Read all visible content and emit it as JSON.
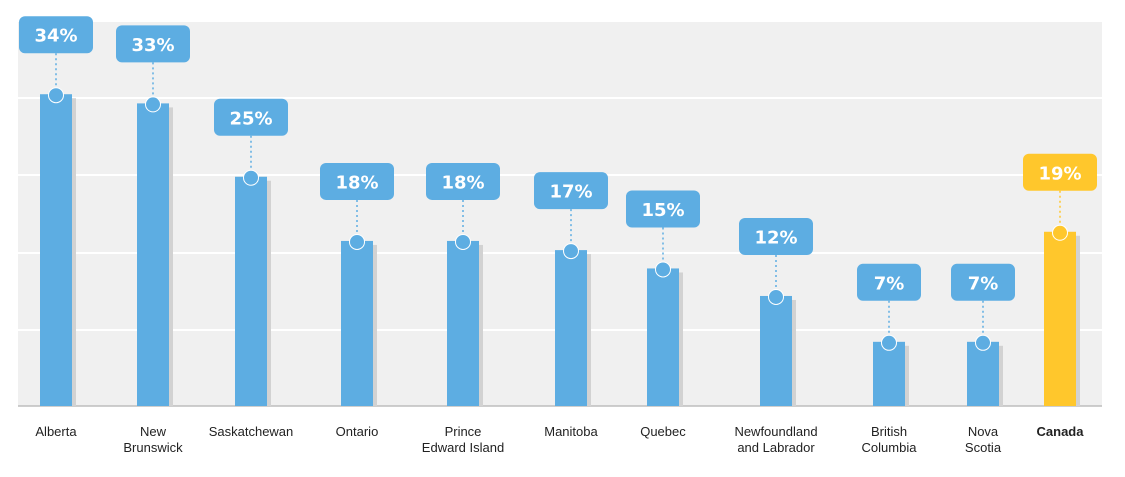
{
  "chart_data": {
    "type": "bar",
    "title": "",
    "xlabel": "",
    "ylabel": "",
    "ylim": [
      0,
      40
    ],
    "grid": true,
    "categories": [
      [
        "Alberta"
      ],
      [
        "New",
        "Brunswick"
      ],
      [
        "Saskatchewan"
      ],
      [
        "Ontario"
      ],
      [
        "Prince",
        "Edward Island"
      ],
      [
        "Manitoba"
      ],
      [
        "Quebec"
      ],
      [
        "Newfoundland",
        "and Labrador"
      ],
      [
        "British",
        "Columbia"
      ],
      [
        "Nova",
        "Scotia"
      ],
      [
        "Canada"
      ]
    ],
    "values": [
      34,
      33,
      25,
      18,
      18,
      17,
      15,
      12,
      7,
      7,
      19
    ],
    "value_labels": [
      "34%",
      "33%",
      "25%",
      "18%",
      "18%",
      "17%",
      "15%",
      "12%",
      "7%",
      "7%",
      "19%"
    ],
    "highlight_index": 10
  },
  "colors": {
    "bar": "#5dade2",
    "bar_shadow": "#d2d2d2",
    "highlight": "#ffc72c",
    "plot_bg": "#f0f0f0",
    "grid": "#ffffff",
    "baseline": "#bdbdbd",
    "connector": "#5dade2"
  }
}
